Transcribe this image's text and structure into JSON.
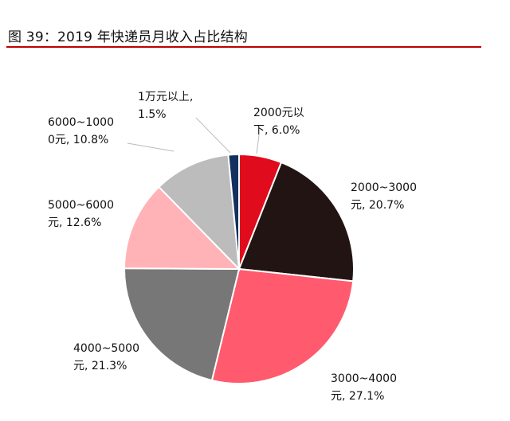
{
  "chart_data": {
    "type": "pie",
    "title": "图 39：2019 年快递员月收入占比结构",
    "slices": [
      {
        "name": "2000元以下",
        "value": 6.0,
        "label_lines": [
          "2000元以",
          "下, 6.0%"
        ],
        "color": "#e00b1c"
      },
      {
        "name": "2000~3000元",
        "value": 20.7,
        "label_lines": [
          "2000~3000",
          "元, 20.7%"
        ],
        "color": "#231414"
      },
      {
        "name": "3000~4000元",
        "value": 27.1,
        "label_lines": [
          "3000~4000",
          "元, 27.1%"
        ],
        "color": "#ff5a6e"
      },
      {
        "name": "4000~5000元",
        "value": 21.3,
        "label_lines": [
          "4000~5000",
          "元, 21.3%"
        ],
        "color": "#777777"
      },
      {
        "name": "5000~6000元",
        "value": 12.6,
        "label_lines": [
          "5000~6000",
          "元, 12.6%"
        ],
        "color": "#ffb3b6"
      },
      {
        "name": "6000~10000元",
        "value": 10.8,
        "label_lines": [
          "6000~1000",
          "0元, 10.8%"
        ],
        "color": "#bcbcbc"
      },
      {
        "name": "1万元以上",
        "value": 1.5,
        "label_lines": [
          "1万元以上,",
          "1.5%"
        ],
        "color": "#14305f"
      }
    ]
  }
}
